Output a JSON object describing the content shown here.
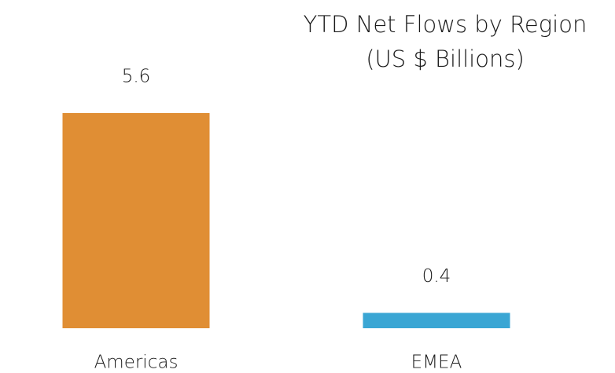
{
  "chart_data": {
    "type": "bar",
    "title": "YTD Net Flows by Region",
    "subtitle": "(US $ Billions)",
    "categories": [
      "Americas",
      "EMEA"
    ],
    "values": [
      5.6,
      0.4
    ],
    "colors": [
      "#e08e34",
      "#3aa6d4"
    ]
  }
}
